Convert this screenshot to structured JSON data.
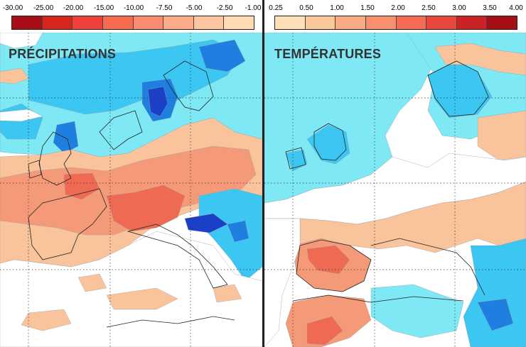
{
  "left_panel": {
    "title": "PRÉCIPITATIONS",
    "legend_ticks": [
      "-30.00",
      "-25.00",
      "-20.00",
      "-15.00",
      "-10.00",
      "-7.50",
      "-5.00",
      "-2.50",
      "-1.00"
    ],
    "legend_colors": [
      "#a50f15",
      "#d7261e",
      "#f0423a",
      "#f86a4f",
      "#fa8d70",
      "#fcab8a",
      "#fdc59f",
      "#fedbb4"
    ]
  },
  "right_panel": {
    "title": "TEMPÉRATURES",
    "legend_ticks": [
      "0.25",
      "0.50",
      "1.00",
      "1.50",
      "2.00",
      "2.50",
      "3.00",
      "3.50",
      "4.00"
    ],
    "legend_colors": [
      "#fde0b8",
      "#fbc89c",
      "#f9ab84",
      "#f88f6d",
      "#f36b52",
      "#e8483b",
      "#cb2226",
      "#a50f15"
    ]
  },
  "colors": {
    "negative_anomaly_light": "#7fe8f5",
    "negative_anomaly_mid": "#3cc6f2",
    "negative_anomaly_strong": "#1e7fe0",
    "negative_anomaly_dark": "#1a40c8",
    "positive_anomaly_light": "#f9c49c",
    "positive_anomaly_mid": "#f59a78",
    "positive_anomaly_strong": "#ef6a52"
  }
}
